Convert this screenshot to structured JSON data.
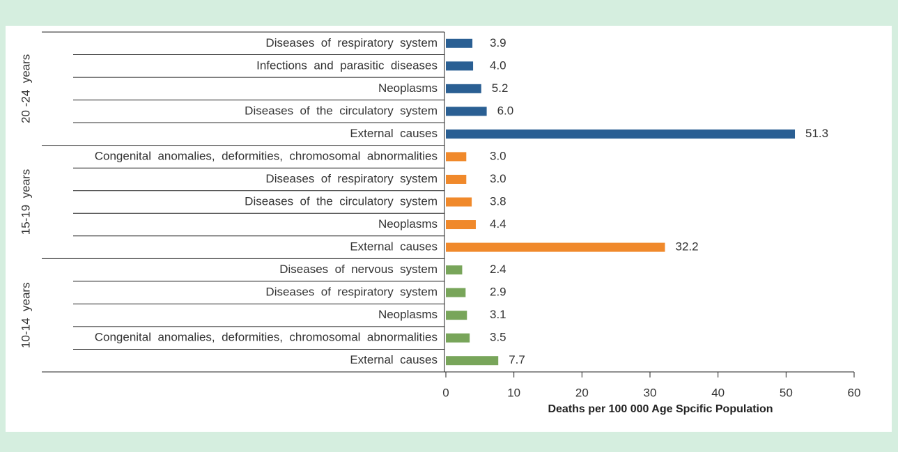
{
  "chart_data": {
    "type": "bar",
    "orientation": "horizontal",
    "xlabel": "Deaths per 100 000 Age Spcific Population",
    "xlim": [
      0,
      60
    ],
    "xticks": [
      0,
      10,
      20,
      30,
      40,
      50,
      60
    ],
    "series": [
      {
        "name": "20 -24  years",
        "color": "#2a5f93",
        "categories": [
          "Diseases  of  respiratory  system",
          "Infections  and  parasitic  diseases",
          "Neoplasms",
          "Diseases  of  the  circulatory  system",
          "External  causes"
        ],
        "values": [
          3.9,
          4.0,
          5.2,
          6.0,
          51.3
        ],
        "value_labels": [
          "3.9",
          "4.0",
          "5.2",
          "6.0",
          "51.3"
        ]
      },
      {
        "name": "15-19  years",
        "color": "#f0892b",
        "categories": [
          "Congenital  anomalies,  deformities,  chromosomal  abnormalities",
          "Diseases  of  respiratory  system",
          "Diseases  of  the  circulatory  system",
          "Neoplasms",
          "External  causes"
        ],
        "values": [
          3.0,
          3.0,
          3.8,
          4.4,
          32.2
        ],
        "value_labels": [
          "3.0",
          "3.0",
          "3.8",
          "4.4",
          "32.2"
        ]
      },
      {
        "name": "10-14  years",
        "color": "#78a55a",
        "categories": [
          "Diseases  of  nervous  system",
          "Diseases  of  respiratory  system",
          "Neoplasms",
          "Congenital  anomalies,  deformities,  chromosomal  abnormalities",
          "External  causes"
        ],
        "values": [
          2.4,
          2.9,
          3.1,
          3.5,
          7.7
        ],
        "value_labels": [
          "2.4",
          "2.9",
          "3.1",
          "3.5",
          "7.7"
        ]
      }
    ]
  }
}
